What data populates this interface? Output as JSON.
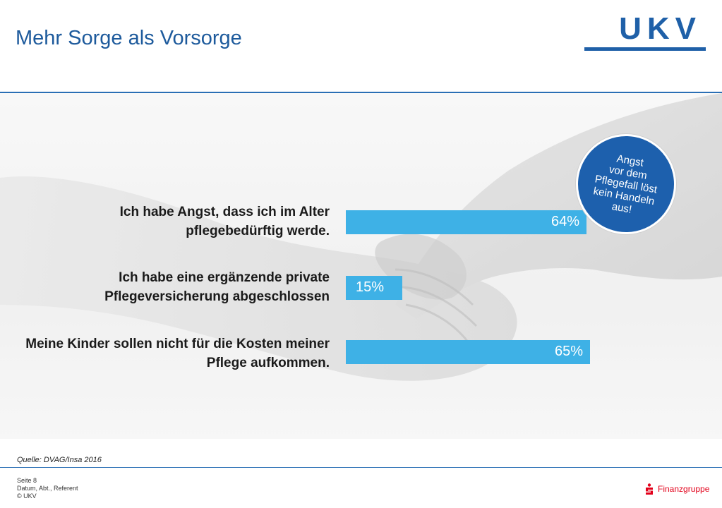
{
  "page": {
    "title": "Mehr Sorge als Vorsorge",
    "logo_text": "UKV",
    "source": "Quelle: DVAG/Insa 2016",
    "footer": {
      "page": "Seite 8",
      "meta": "Datum, Abt., Referent",
      "copyright": "© UKV"
    },
    "brand": "Finanzgruppe"
  },
  "colors": {
    "title": "#1d5a9c",
    "bar": "#3eb1e6",
    "badge": "#1d60ad",
    "brand": "#e2001a"
  },
  "badge": {
    "text": "Angst\nvor dem\nPflegefall löst\nkein Handeln\naus!"
  },
  "chart_data": {
    "type": "bar",
    "orientation": "horizontal",
    "categories": [
      "Ich habe Angst, dass ich im Alter pflegebedürftig werde.",
      "Ich habe eine ergänzende private Pflegeversicherung abgeschlossen",
      "Meine Kinder sollen nicht für die Kosten meiner Pflege aufkommen."
    ],
    "values": [
      64,
      15,
      65
    ],
    "value_labels": [
      "64%",
      "15%",
      "65%"
    ],
    "unit": "%",
    "xlim": [
      0,
      100
    ]
  }
}
